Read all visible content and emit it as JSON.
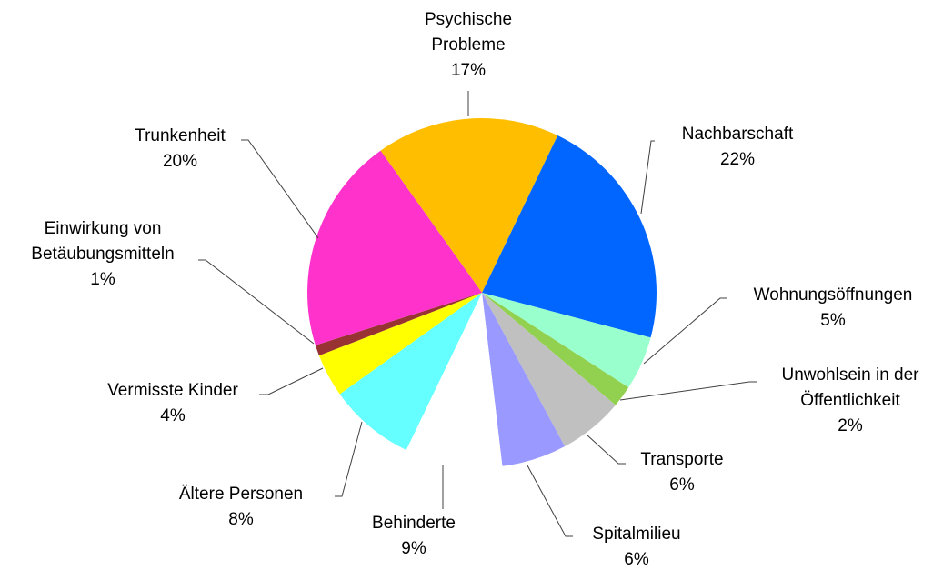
{
  "chart_data": {
    "type": "pie",
    "categories": [
      "Psychische\nProbleme",
      "Nachbarschaft",
      "Wohnungsöffnungen",
      "Unwohlsein in der\nÖffentlichkeit",
      "Transporte",
      "Spitalmilieu",
      "Behinderte",
      "Ältere Personen",
      "Vermisste Kinder",
      "Einwirkung  von\nBetäubungsmitteln",
      "Trunkenheit"
    ],
    "values": [
      17,
      22,
      5,
      2,
      6,
      6,
      9,
      8,
      4,
      1,
      20
    ],
    "value_labels": [
      "17%",
      "22%",
      "5%",
      "2%",
      "6%",
      "6%",
      "9%",
      "8%",
      "4%",
      "1%",
      "20%"
    ],
    "colors": [
      "#FFBF00",
      "#0066FF",
      "#99FFCC",
      "#92D050",
      "#C0C0C0",
      "#9999FF",
      "#FFFFFF",
      "#66FFFF",
      "#FFFF00",
      "#993333",
      "#FF33CC"
    ]
  }
}
